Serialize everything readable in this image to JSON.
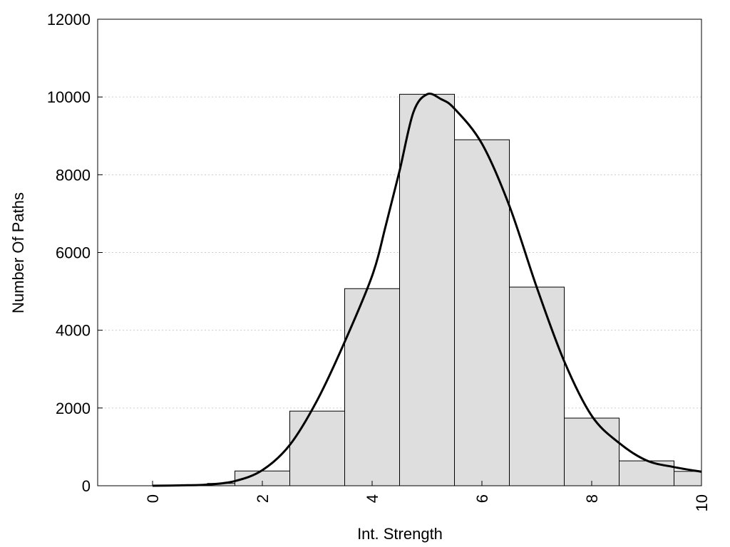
{
  "chart_data": {
    "type": "bar",
    "title": "",
    "xlabel": "Int. Strength",
    "ylabel": "Number Of Paths",
    "xlim": [
      -1,
      10
    ],
    "ylim": [
      0,
      12000
    ],
    "xticks": [
      "0",
      "2",
      "4",
      "6",
      "8",
      "10"
    ],
    "xtick_values": [
      0,
      2,
      4,
      6,
      8,
      10
    ],
    "yticks": [
      "0",
      "2000",
      "4000",
      "6000",
      "8000",
      "10000",
      "12000"
    ],
    "ytick_values": [
      0,
      2000,
      4000,
      6000,
      8000,
      10000,
      12000
    ],
    "grid": "horizontal-dotted",
    "colors": {
      "bar_fill": "#dedede",
      "bar_stroke": "#000000",
      "curve": "#000000",
      "grid": "#cccccc"
    },
    "bins": [
      {
        "x0": 0.0,
        "x1": 1.0,
        "value": 15
      },
      {
        "x0": 1.0,
        "x1": 1.5,
        "value": 60
      },
      {
        "x0": 1.5,
        "x1": 2.5,
        "value": 380
      },
      {
        "x0": 2.5,
        "x1": 3.5,
        "value": 1920
      },
      {
        "x0": 3.5,
        "x1": 4.5,
        "value": 5070
      },
      {
        "x0": 4.5,
        "x1": 5.5,
        "value": 10070
      },
      {
        "x0": 5.5,
        "x1": 6.5,
        "value": 8900
      },
      {
        "x0": 6.5,
        "x1": 7.5,
        "value": 5110
      },
      {
        "x0": 7.5,
        "x1": 8.5,
        "value": 1740
      },
      {
        "x0": 8.5,
        "x1": 9.5,
        "value": 640
      },
      {
        "x0": 9.5,
        "x1": 10.0,
        "value": 370
      }
    ],
    "density_curve": {
      "x": [
        0,
        0.5,
        1.0,
        1.5,
        2.0,
        2.5,
        3.0,
        3.5,
        4.0,
        4.25,
        4.5,
        4.75,
        5.0,
        5.25,
        5.5,
        6.0,
        6.5,
        7.0,
        7.5,
        8.0,
        8.5,
        9.0,
        9.5,
        10.0
      ],
      "y": [
        0,
        10,
        30,
        120,
        400,
        1050,
        2200,
        3700,
        5400,
        6700,
        8100,
        9600,
        10070,
        9950,
        9700,
        8800,
        7200,
        5100,
        3200,
        1800,
        1100,
        650,
        480,
        360
      ]
    }
  }
}
